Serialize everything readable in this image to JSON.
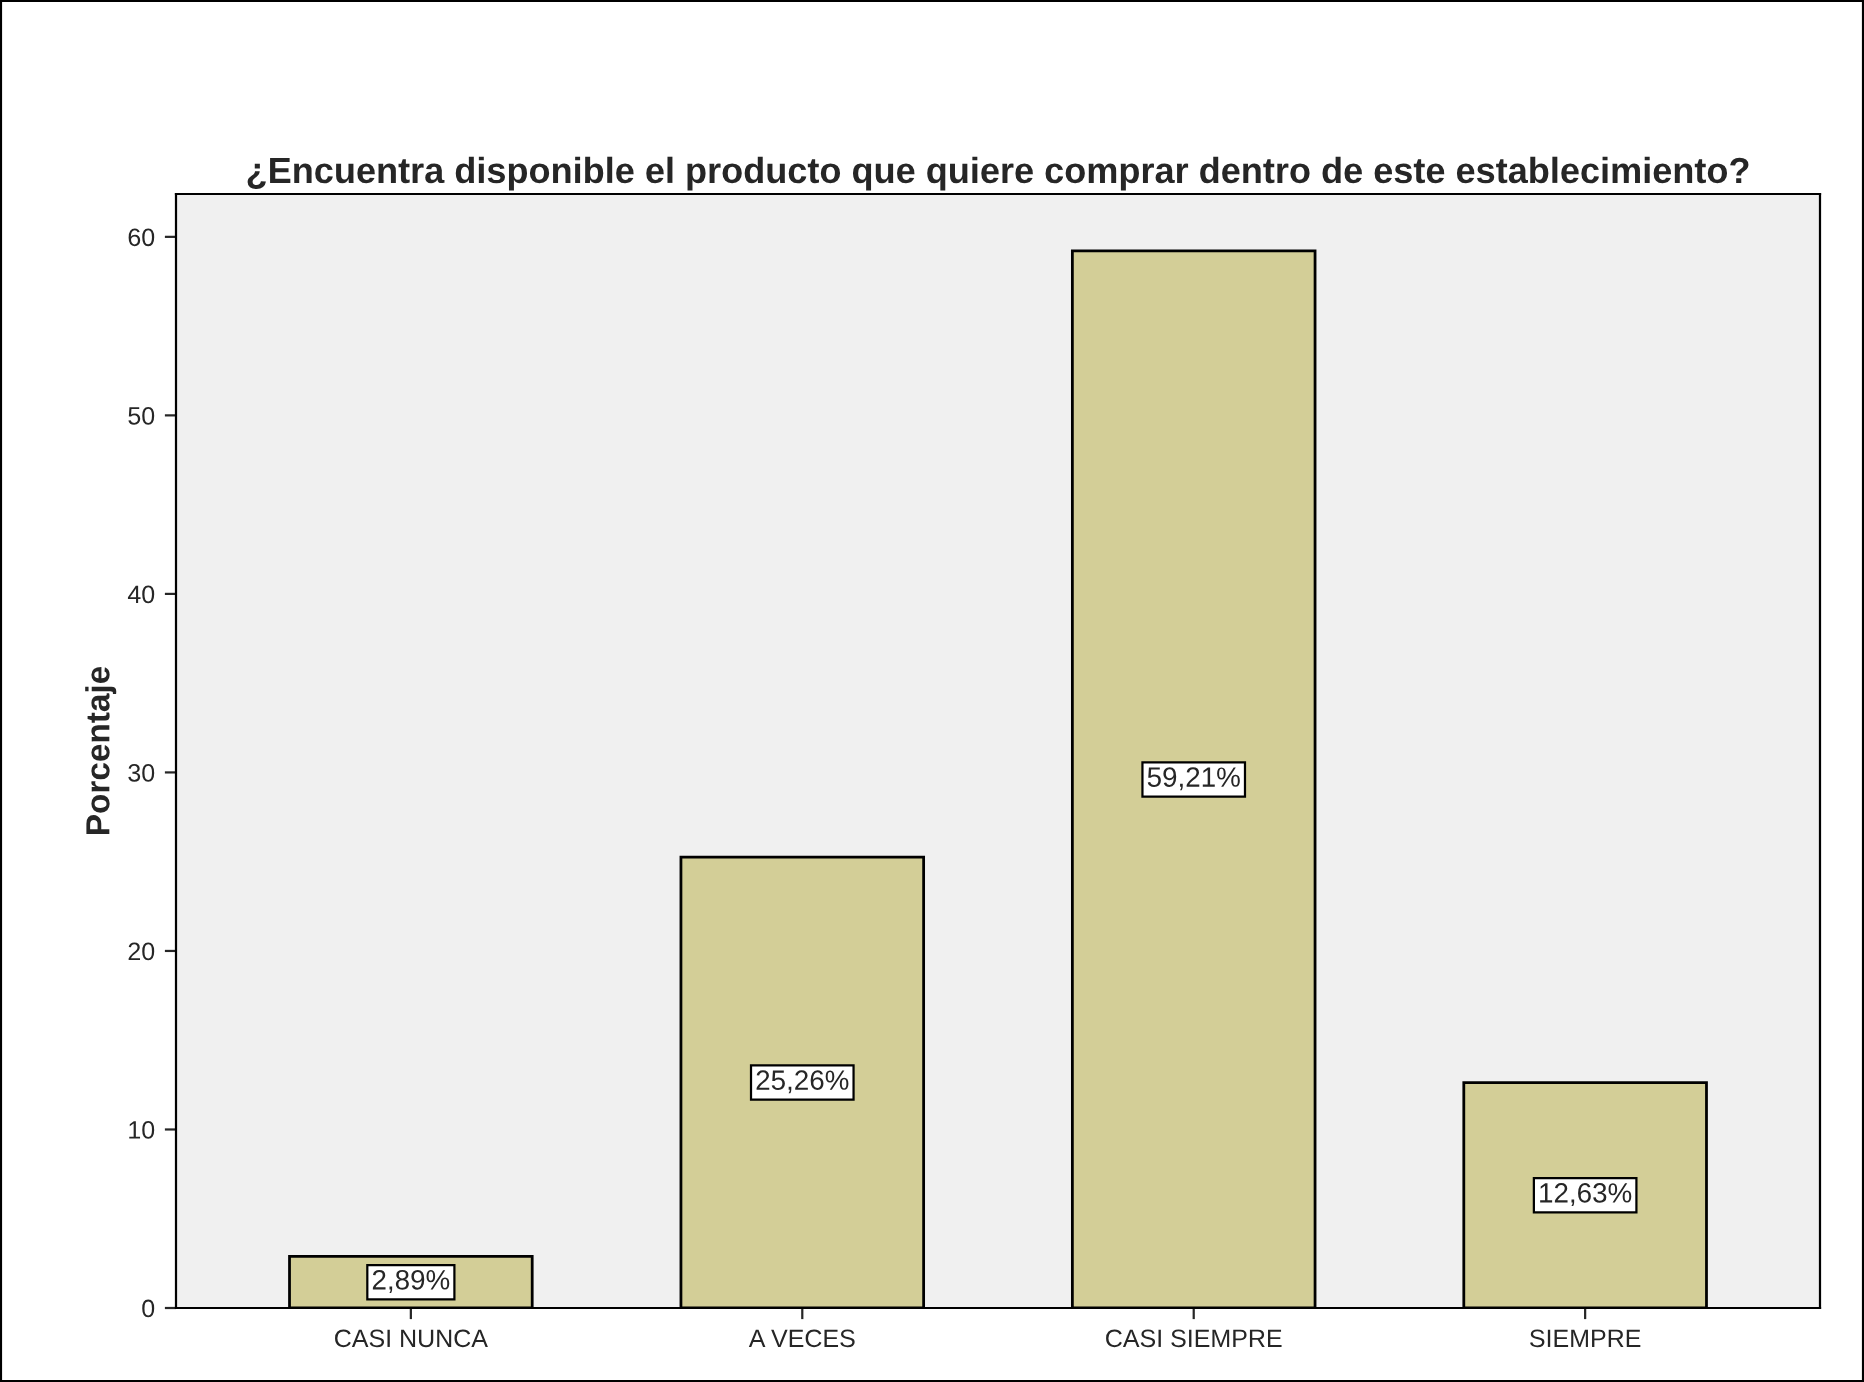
{
  "chart_data": {
    "type": "bar",
    "title": "¿Encuentra disponible el producto que quiere comprar dentro de este establecimiento?",
    "ylabel": "Porcentaje",
    "categories": [
      "CASI NUNCA",
      "A VECES",
      "CASI SIEMPRE",
      "SIEMPRE"
    ],
    "values": [
      2.89,
      25.26,
      59.21,
      12.63
    ],
    "value_labels": [
      "2,89%",
      "25,26%",
      "59,21%",
      "12,63%"
    ],
    "color": "#d3ce97",
    "ylim": [
      0,
      62.4
    ],
    "yticks": [
      0,
      10,
      20,
      30,
      40,
      50,
      60
    ],
    "grid": false,
    "legend": false
  }
}
